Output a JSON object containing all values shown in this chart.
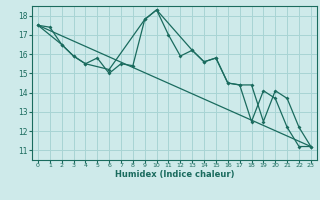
{
  "xlabel": "Humidex (Indice chaleur)",
  "bg_color": "#ceeaea",
  "grid_color": "#a8d4d4",
  "line_color": "#1a6b5e",
  "xlim": [
    -0.5,
    23.5
  ],
  "ylim": [
    10.5,
    18.5
  ],
  "yticks": [
    11,
    12,
    13,
    14,
    15,
    16,
    17,
    18
  ],
  "xticks": [
    0,
    1,
    2,
    3,
    4,
    5,
    6,
    7,
    8,
    9,
    10,
    11,
    12,
    13,
    14,
    15,
    16,
    17,
    18,
    19,
    20,
    21,
    22,
    23
  ],
  "series1_x": [
    0,
    1,
    2,
    3,
    4,
    5,
    6,
    7,
    8,
    9,
    10,
    11,
    12,
    13,
    14,
    15,
    16,
    17,
    18,
    19,
    20,
    21,
    22,
    23
  ],
  "series1_y": [
    17.5,
    17.4,
    16.5,
    15.9,
    15.5,
    15.8,
    15.0,
    15.5,
    15.4,
    17.8,
    18.3,
    17.0,
    15.9,
    16.2,
    15.6,
    15.8,
    14.5,
    14.4,
    14.4,
    12.5,
    14.1,
    13.7,
    12.2,
    11.2
  ],
  "series2_x": [
    0,
    2,
    3,
    4,
    6,
    9,
    10,
    13,
    14,
    15,
    16,
    17,
    18,
    19,
    20,
    21,
    22,
    23
  ],
  "series2_y": [
    17.5,
    16.5,
    15.9,
    15.5,
    15.2,
    17.8,
    18.3,
    16.2,
    15.6,
    15.8,
    14.5,
    14.4,
    12.5,
    14.1,
    13.7,
    12.2,
    11.2,
    11.2
  ],
  "series3_x": [
    0,
    23
  ],
  "series3_y": [
    17.5,
    11.2
  ]
}
